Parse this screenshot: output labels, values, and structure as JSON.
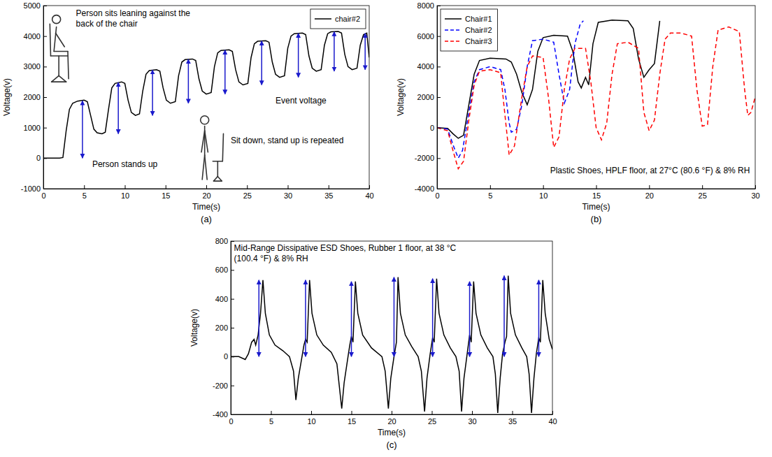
{
  "chart_data": [
    {
      "type": "line",
      "caption": "(a)",
      "x_label": "Time(s)",
      "y_label": "Voltage(v)",
      "xlim": [
        0,
        40
      ],
      "ylim": [
        -1000,
        5000
      ],
      "xticks": [
        0,
        5,
        10,
        15,
        20,
        25,
        30,
        35,
        40
      ],
      "yticks": [
        -1000,
        0,
        1000,
        2000,
        3000,
        4000,
        5000
      ],
      "legend": "top-right",
      "series": [
        {
          "name": "chair#2",
          "color": "#000000",
          "line_style": "solid",
          "x": [
            0,
            1,
            2,
            2.4,
            2.8,
            3.2,
            3.6,
            4.2,
            5.0,
            5.4,
            5.8,
            6.2,
            6.6,
            7.2,
            7.6,
            8.0,
            8.4,
            8.8,
            9.6,
            10.0,
            10.4,
            10.8,
            11.3,
            11.8,
            12.2,
            12.6,
            13.0,
            13.9,
            14.3,
            14.7,
            15.1,
            15.6,
            16.2,
            16.6,
            17.0,
            17.4,
            18.3,
            18.7,
            19.1,
            19.5,
            20.0,
            20.6,
            21.0,
            21.4,
            21.8,
            22.8,
            23.2,
            23.6,
            24.0,
            24.5,
            25.1,
            25.5,
            25.9,
            26.3,
            27.3,
            27.7,
            28.1,
            28.5,
            29.0,
            29.6,
            30.0,
            30.4,
            30.8,
            31.8,
            32.2,
            32.6,
            33.0,
            33.5,
            34.1,
            34.5,
            34.9,
            35.3,
            36.2,
            36.6,
            37.0,
            37.4,
            37.9,
            38.5,
            38.9,
            39.3,
            39.7,
            40
          ],
          "values": [
            0,
            0,
            0,
            20,
            900,
            1600,
            1800,
            1870,
            1900,
            1850,
            1400,
            950,
            830,
            800,
            850,
            1600,
            2300,
            2450,
            2500,
            2450,
            1900,
            1500,
            1400,
            1450,
            2200,
            2750,
            2870,
            2900,
            2850,
            2300,
            1900,
            1800,
            1850,
            2700,
            3150,
            3230,
            3250,
            3200,
            2600,
            2200,
            2100,
            2150,
            3000,
            3450,
            3530,
            3550,
            3500,
            2900,
            2500,
            2400,
            2450,
            3300,
            3750,
            3830,
            3850,
            3800,
            3150,
            2750,
            2650,
            2700,
            3600,
            4000,
            4080,
            4100,
            4050,
            3350,
            2950,
            2850,
            2900,
            3700,
            4080,
            4140,
            4150,
            4100,
            3400,
            3000,
            2900,
            2950,
            3700,
            4050,
            4100,
            3300
          ]
        }
      ],
      "event_arrows": [
        {
          "x": 4.8,
          "from": 0,
          "to": 1880
        },
        {
          "x": 9.2,
          "from": 800,
          "to": 2480
        },
        {
          "x": 13.4,
          "from": 1400,
          "to": 2890
        },
        {
          "x": 17.8,
          "from": 1800,
          "to": 3240
        },
        {
          "x": 22.3,
          "from": 2100,
          "to": 3540
        },
        {
          "x": 26.8,
          "from": 2400,
          "to": 3840
        },
        {
          "x": 31.3,
          "from": 2650,
          "to": 4090
        },
        {
          "x": 35.7,
          "from": 2850,
          "to": 4140
        },
        {
          "x": 39.5,
          "from": 2900,
          "to": 4090
        }
      ],
      "annotations": [
        "Person sits leaning against the back of the chair",
        "Person stands up",
        "Event voltage",
        "Sit down, stand up is repeated"
      ]
    },
    {
      "type": "line",
      "caption": "(b)",
      "x_label": "Time(s)",
      "y_label": "Voltage(v)",
      "xlim": [
        0,
        30
      ],
      "ylim": [
        -4000,
        8000
      ],
      "xticks": [
        0,
        5,
        10,
        15,
        20,
        25,
        30
      ],
      "yticks": [
        -4000,
        -2000,
        0,
        2000,
        4000,
        6000,
        8000
      ],
      "legend": "top-left",
      "series": [
        {
          "name": "Chair#1",
          "color": "#000000",
          "line_style": "solid",
          "x": [
            0,
            1,
            1.5,
            2,
            2.5,
            3,
            3.5,
            4,
            5,
            6.5,
            7,
            7.5,
            8,
            8.5,
            9,
            9.5,
            10,
            11,
            12.3,
            12.8,
            13.3,
            13.6,
            14,
            14.3,
            14.7,
            15.2,
            16.5,
            18,
            18.5,
            19,
            19.5,
            20,
            20.5,
            21
          ],
          "values": [
            0,
            -50,
            -400,
            -700,
            -500,
            1500,
            3500,
            4400,
            4550,
            4500,
            4300,
            3500,
            2300,
            1500,
            2500,
            5000,
            5900,
            6050,
            6000,
            5000,
            3000,
            2600,
            3300,
            2800,
            5500,
            6900,
            7050,
            7000,
            6500,
            4500,
            3300,
            3800,
            4200,
            7000
          ]
        },
        {
          "name": "Chair#2",
          "color": "#0000ff",
          "line_style": "dashed",
          "x": [
            0,
            1,
            1.6,
            2,
            2.4,
            3,
            3.5,
            4,
            5,
            6,
            6.4,
            6.8,
            7,
            7.5,
            8,
            8.5,
            9,
            10,
            11,
            11.5,
            12,
            12.5,
            13,
            13.5,
            13.8
          ],
          "values": [
            0,
            -100,
            -1300,
            -2000,
            -1500,
            1000,
            3000,
            3800,
            4000,
            3800,
            2500,
            300,
            -300,
            -100,
            1500,
            4000,
            5700,
            5800,
            5600,
            3500,
            1600,
            2500,
            5500,
            6800,
            7000
          ]
        },
        {
          "name": "Chair#3",
          "color": "#ff0000",
          "line_style": "dashed",
          "x": [
            0,
            1,
            1.5,
            2,
            2.5,
            3,
            3.5,
            4,
            5,
            6,
            6.3,
            6.8,
            7.3,
            8,
            8.5,
            9,
            10,
            10.5,
            11,
            11.5,
            12,
            12.5,
            13,
            14,
            14.5,
            15,
            15.5,
            16,
            16.5,
            17,
            18,
            19,
            19.5,
            20,
            20.5,
            21,
            21.5,
            22,
            23,
            24,
            24.5,
            25,
            25.5,
            26,
            26.5,
            27.5,
            28.5,
            29,
            29.3,
            29.6,
            30
          ],
          "values": [
            0,
            -200,
            -1500,
            -2700,
            -2200,
            500,
            2800,
            3700,
            3800,
            3600,
            1500,
            -1800,
            -1200,
            2000,
            4000,
            4700,
            4600,
            2000,
            -1300,
            -600,
            2500,
            4500,
            5200,
            5200,
            3000,
            0,
            -800,
            300,
            3500,
            5500,
            5600,
            5200,
            1000,
            -200,
            500,
            3500,
            5800,
            6200,
            6200,
            6000,
            2500,
            100,
            200,
            4000,
            6400,
            6600,
            6300,
            2500,
            800,
            1000,
            2000
          ]
        }
      ],
      "annotations": [
        "Plastic Shoes, HPLF floor, at 27°C (80.6 °F) & 8% RH"
      ]
    },
    {
      "type": "line",
      "caption": "(c)",
      "x_label": "Time(s)",
      "y_label": "Voltage(v)",
      "xlim": [
        0,
        40
      ],
      "ylim": [
        -400,
        800
      ],
      "xticks": [
        0,
        5,
        10,
        15,
        20,
        25,
        30,
        35,
        40
      ],
      "yticks": [
        -400,
        -200,
        0,
        200,
        400,
        600,
        800
      ],
      "series": [
        {
          "color": "#000000",
          "line_style": "solid",
          "x": [
            0,
            1,
            1.8,
            2.2,
            2.6,
            2.9,
            3.1,
            3.4,
            3.7,
            4.0,
            4.3,
            4.8,
            5.5,
            6.5,
            7.3,
            7.8,
            8.1,
            8.4,
            8.8,
            9.1,
            9.3,
            9.5,
            9.8,
            10.1,
            10.7,
            11.5,
            12.5,
            13.2,
            13.8,
            14.1,
            14.5,
            14.8,
            15.0,
            15.2,
            15.5,
            15.8,
            16.4,
            17.5,
            18.8,
            19.2,
            19.6,
            19.9,
            20.3,
            20.6,
            20.8,
            21.1,
            21.7,
            22.5,
            23.3,
            23.7,
            24.1,
            24.4,
            24.8,
            25.1,
            25.3,
            25.6,
            25.9,
            26.5,
            27.3,
            28.0,
            28.4,
            28.7,
            29.0,
            29.4,
            29.7,
            29.9,
            30.2,
            30.5,
            31.1,
            31.9,
            32.6,
            32.9,
            33.2,
            33.5,
            33.8,
            34.1,
            34.3,
            34.5,
            34.8,
            35.4,
            36.2,
            36.8,
            37.1,
            37.4,
            37.7,
            38.0,
            38.3,
            38.5,
            38.8,
            39.1,
            39.6,
            40
          ],
          "values": [
            0,
            0,
            -20,
            20,
            100,
            120,
            80,
            150,
            300,
            530,
            300,
            150,
            80,
            40,
            0,
            -100,
            -300,
            -150,
            -20,
            80,
            120,
            100,
            530,
            300,
            150,
            80,
            30,
            -50,
            -360,
            -180,
            -30,
            80,
            140,
            100,
            520,
            300,
            150,
            60,
            0,
            -100,
            -360,
            -150,
            0,
            100,
            550,
            300,
            150,
            70,
            0,
            -100,
            -380,
            -150,
            20,
            130,
            100,
            540,
            300,
            150,
            60,
            0,
            -100,
            -380,
            -150,
            20,
            150,
            100,
            520,
            300,
            150,
            60,
            0,
            -120,
            -390,
            -150,
            20,
            100,
            140,
            560,
            300,
            150,
            60,
            0,
            -120,
            -390,
            -150,
            20,
            130,
            100,
            530,
            300,
            120,
            50
          ]
        }
      ],
      "event_arrows": [
        {
          "x": 3.5,
          "from": 0,
          "to": 530
        },
        {
          "x": 9.3,
          "from": 0,
          "to": 530
        },
        {
          "x": 15.0,
          "from": 0,
          "to": 520
        },
        {
          "x": 20.3,
          "from": 0,
          "to": 550
        },
        {
          "x": 25.1,
          "from": 0,
          "to": 540
        },
        {
          "x": 29.7,
          "from": 0,
          "to": 520
        },
        {
          "x": 34.0,
          "from": 0,
          "to": 560
        },
        {
          "x": 38.3,
          "from": 0,
          "to": 530
        }
      ],
      "annotations": [
        "Mid-Range Dissipative ESD Shoes, Rubber 1 floor, at 38 °C (100.4 °F) & 8% RH"
      ]
    }
  ]
}
